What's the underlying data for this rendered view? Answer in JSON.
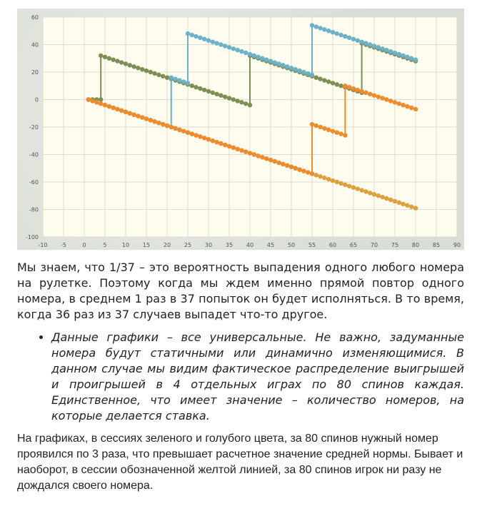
{
  "chart_data": {
    "type": "line",
    "xlim": [
      -10,
      90
    ],
    "ylim": [
      -100,
      60
    ],
    "x_ticks": [
      -10,
      -5,
      0,
      5,
      10,
      15,
      20,
      25,
      30,
      35,
      40,
      45,
      50,
      55,
      60,
      65,
      70,
      75,
      80,
      85,
      90
    ],
    "y_ticks": [
      -100,
      -80,
      -60,
      -40,
      -20,
      0,
      20,
      40,
      60
    ],
    "grid": true,
    "series": [
      {
        "color": "#7d8f55",
        "points": [
          [
            1,
            0
          ],
          [
            4,
            0
          ],
          [
            4,
            32
          ],
          [
            40,
            -4
          ],
          [
            40,
            32
          ],
          [
            67,
            5
          ],
          [
            67,
            41
          ],
          [
            80,
            28
          ]
        ]
      },
      {
        "color": "#6bb1c7",
        "points": [
          [
            1,
            0
          ],
          [
            21,
            -20
          ],
          [
            21,
            16
          ],
          [
            25,
            12
          ],
          [
            25,
            48
          ],
          [
            55,
            18
          ],
          [
            55,
            54
          ],
          [
            80,
            29
          ]
        ]
      },
      {
        "color": "#f08a2a",
        "points": [
          [
            1,
            0
          ],
          [
            55,
            -54
          ],
          [
            55,
            -18
          ],
          [
            63,
            -26
          ],
          [
            63,
            10
          ],
          [
            80,
            -7
          ]
        ]
      },
      {
        "color": "#dca03c",
        "points": [
          [
            1,
            0
          ],
          [
            80,
            -79
          ]
        ]
      }
    ]
  },
  "text": {
    "para1": "Мы знаем, что 1/37 – это вероятность выпадения одного любого номера на рулетке. Поэтому когда мы ждем именно прямой повтор одного номера, в среднем 1 раз в 37 попыток он будет исполняться. В то время, когда 36 раз из 37 случаев выпадет что-то другое.",
    "bullet": "Данные графики – все универсальные. Не важно, задуманные номера будут статичными или динамично изменяющимися. В данном случае мы видим фактическое распределение выигрышей и проигрышей в 4 отдельных играх по 80 спинов каждая. Единственное, что имеет значение – количество номеров, на которые делается ставка.",
    "para2": "На графиках, в сессиях зеленого и голубого цвета, за 80 спинов нужный номер проявился по 3 раза, что превышает расчетное значение средней нормы. Бывает и наоборот, в сессии обозначенной желтой линией, за 80 спинов игрок ни разу не дождался своего номера."
  }
}
